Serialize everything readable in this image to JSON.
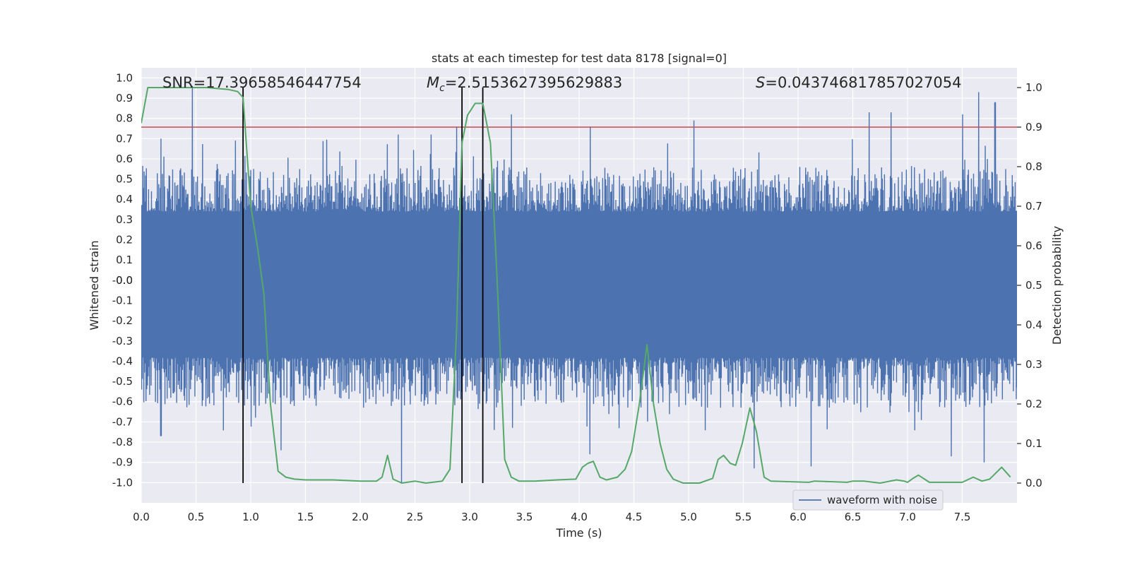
{
  "chart_data": {
    "type": "line",
    "title": "stats at each timestep for test data 8178 [signal=0]",
    "xlabel": "Time (s)",
    "ylabel_left": "Whitened strain",
    "ylabel_right": "Detection probability",
    "xlim": [
      0.0,
      8.0
    ],
    "ylim_left": [
      -1.1,
      1.05
    ],
    "ylim_right": [
      -0.05,
      1.05
    ],
    "x_ticks": [
      "0.0",
      "0.5",
      "1.0",
      "1.5",
      "2.0",
      "2.5",
      "3.0",
      "3.5",
      "4.0",
      "4.5",
      "5.0",
      "5.5",
      "6.0",
      "6.5",
      "7.0",
      "7.5"
    ],
    "y_ticks_left": [
      "1.0",
      "0.9",
      "0.8",
      "0.7",
      "0.6",
      "0.5",
      "0.4",
      "0.3",
      "0.2",
      "0.1",
      "0.0",
      "-0.0",
      "-0.1",
      "-0.2",
      "-0.3",
      "-0.4",
      "-0.5",
      "-0.6",
      "-0.7",
      "-0.8",
      "-0.9",
      "-1.0"
    ],
    "y_tick_values_left": [
      1.0,
      0.9,
      0.8,
      0.7,
      0.6,
      0.5,
      0.4,
      0.3,
      0.2,
      0.1,
      0.0,
      -0.0,
      -0.1,
      -0.2,
      -0.3,
      -0.4,
      -0.5,
      -0.6,
      -0.7,
      -0.8,
      -0.9,
      -1.0
    ],
    "y_ticks_right": [
      "1.0",
      "0.9",
      "0.8",
      "0.7",
      "0.6",
      "0.5",
      "0.4",
      "0.3",
      "0.2",
      "0.1",
      "0.0"
    ],
    "y_tick_values_right": [
      1.0,
      0.9,
      0.8,
      0.7,
      0.6,
      0.5,
      0.4,
      0.3,
      0.2,
      0.1,
      0.0
    ],
    "annotations": {
      "snr": "SNR=17.39658546447754",
      "mc_symbol": "M",
      "mc_sub": "c",
      "mc_value": "=2.5153627395629883",
      "s_symbol": "S",
      "s_value": "=0.043746817857027054"
    },
    "threshold": 0.9,
    "vlines_x": [
      0.93,
      2.93,
      3.12
    ],
    "legend": {
      "label": "waveform with noise",
      "position": "lower-right"
    },
    "noise": {
      "name": "waveform with noise",
      "color": "#4c72b0",
      "band_upper_approx": 0.4,
      "band_lower_approx": -0.45,
      "peaks": [
        {
          "x": 0.47,
          "y": 0.96
        },
        {
          "x": 0.18,
          "y": 0.7
        },
        {
          "x": 2.35,
          "y": 0.72
        },
        {
          "x": 2.65,
          "y": 0.72
        },
        {
          "x": 2.88,
          "y": 0.76
        },
        {
          "x": 3.38,
          "y": 0.82
        },
        {
          "x": 4.1,
          "y": 0.76
        },
        {
          "x": 5.05,
          "y": 0.79
        },
        {
          "x": 6.65,
          "y": 0.83
        },
        {
          "x": 6.85,
          "y": 0.83
        },
        {
          "x": 7.5,
          "y": 0.82
        },
        {
          "x": 7.65,
          "y": 0.93
        },
        {
          "x": 7.8,
          "y": 0.88
        },
        {
          "x": 2.38,
          "y": -1.0
        },
        {
          "x": 0.18,
          "y": -0.77
        },
        {
          "x": 1.28,
          "y": -0.84
        },
        {
          "x": 4.1,
          "y": -0.86
        },
        {
          "x": 5.6,
          "y": -0.93
        },
        {
          "x": 6.12,
          "y": -0.92
        },
        {
          "x": 7.4,
          "y": -0.87
        },
        {
          "x": 7.7,
          "y": -0.9
        }
      ]
    },
    "series": [
      {
        "name": "detection probability",
        "axis": "right",
        "color": "#55a868",
        "x": [
          0.0,
          0.06,
          0.2,
          0.4,
          0.6,
          0.8,
          0.88,
          0.93,
          1.0,
          1.06,
          1.12,
          1.18,
          1.25,
          1.32,
          1.4,
          1.5,
          1.75,
          2.0,
          2.15,
          2.2,
          2.25,
          2.3,
          2.38,
          2.5,
          2.6,
          2.75,
          2.82,
          2.88,
          2.93,
          2.98,
          3.05,
          3.12,
          3.19,
          3.25,
          3.32,
          3.38,
          3.45,
          3.6,
          3.8,
          3.97,
          4.03,
          4.08,
          4.13,
          4.19,
          4.25,
          4.35,
          4.42,
          4.48,
          4.55,
          4.62,
          4.68,
          4.74,
          4.8,
          4.86,
          4.95,
          5.1,
          5.22,
          5.27,
          5.32,
          5.38,
          5.43,
          5.49,
          5.56,
          5.62,
          5.69,
          5.75,
          6.1,
          6.15,
          6.45,
          6.5,
          6.6,
          6.75,
          6.9,
          6.97,
          7.0,
          7.05,
          7.1,
          7.2,
          7.5,
          7.6,
          7.68,
          7.75,
          7.86,
          7.94
        ],
        "values": [
          0.91,
          1.0,
          1.0,
          1.0,
          1.0,
          0.995,
          0.99,
          0.975,
          0.7,
          0.6,
          0.48,
          0.2,
          0.03,
          0.015,
          0.01,
          0.008,
          0.008,
          0.005,
          0.005,
          0.015,
          0.07,
          0.01,
          0.0,
          0.005,
          0.0,
          0.005,
          0.035,
          0.38,
          0.86,
          0.93,
          0.96,
          0.96,
          0.86,
          0.52,
          0.06,
          0.015,
          0.005,
          0.005,
          0.008,
          0.01,
          0.04,
          0.05,
          0.055,
          0.015,
          0.008,
          0.015,
          0.035,
          0.08,
          0.2,
          0.35,
          0.2,
          0.1,
          0.035,
          0.01,
          0.0,
          0.0,
          0.012,
          0.06,
          0.07,
          0.05,
          0.045,
          0.1,
          0.19,
          0.13,
          0.015,
          0.005,
          0.002,
          0.005,
          0.002,
          0.005,
          0.005,
          0.0,
          0.008,
          0.005,
          0.002,
          0.012,
          0.02,
          0.002,
          0.002,
          0.015,
          0.005,
          0.01,
          0.04,
          0.015
        ]
      }
    ],
    "colors": {
      "axes_bg": "#eaeaf2",
      "grid": "#ffffff",
      "noise": "#4c72b0",
      "probability": "#55a868",
      "threshold": "#c44e52",
      "vline": "#000000"
    }
  }
}
